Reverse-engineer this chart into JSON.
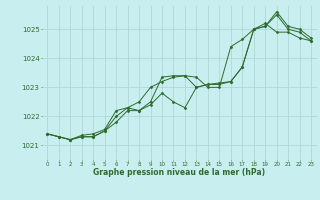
{
  "title": "Graphe pression niveau de la mer (hPa)",
  "background_color": "#c8eef0",
  "grid_color": "#b0d8d8",
  "line_color": "#2d6b2d",
  "marker_color": "#2d6b2d",
  "xlim": [
    -0.5,
    23.5
  ],
  "ylim": [
    1020.5,
    1025.8
  ],
  "yticks": [
    1021,
    1022,
    1023,
    1024,
    1025
  ],
  "xticks": [
    0,
    1,
    2,
    3,
    4,
    5,
    6,
    7,
    8,
    9,
    10,
    11,
    12,
    13,
    14,
    15,
    16,
    17,
    18,
    19,
    20,
    21,
    22,
    23
  ],
  "series1": [
    1021.4,
    1021.3,
    1021.2,
    1021.3,
    1021.3,
    1021.5,
    1021.8,
    1022.2,
    1022.2,
    1022.4,
    1022.8,
    1022.5,
    1022.3,
    1023.0,
    1023.1,
    1023.1,
    1023.2,
    1023.7,
    1025.0,
    1025.2,
    1024.9,
    1024.9,
    1024.7,
    1024.6
  ],
  "series2": [
    1021.4,
    1021.3,
    1021.2,
    1021.3,
    1021.3,
    1021.5,
    1022.0,
    1022.3,
    1022.2,
    1022.5,
    1023.35,
    1023.4,
    1023.4,
    1023.35,
    1023.0,
    1023.0,
    1024.4,
    1024.65,
    1025.0,
    1025.1,
    1025.5,
    1025.0,
    1024.9,
    1024.6
  ],
  "series3": [
    1021.4,
    1021.3,
    1021.2,
    1021.35,
    1021.4,
    1021.55,
    1022.2,
    1022.3,
    1022.5,
    1023.0,
    1023.2,
    1023.35,
    1023.4,
    1023.0,
    1023.1,
    1023.15,
    1023.2,
    1023.7,
    1025.0,
    1025.1,
    1025.6,
    1025.1,
    1025.0,
    1024.7
  ]
}
